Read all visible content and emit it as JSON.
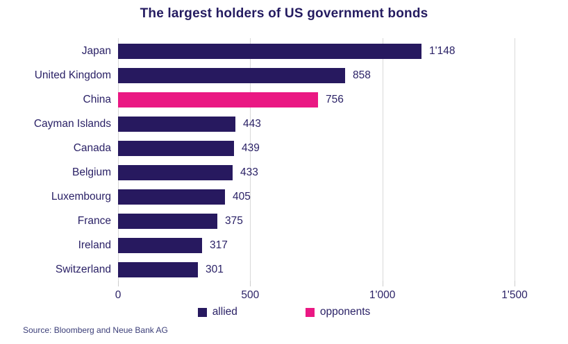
{
  "page": {
    "title": "The largest holders of US government bonds",
    "source": "Source: Bloomberg and Neue Bank AG"
  },
  "legend": {
    "allied_label": "allied",
    "opponents_label": "opponents"
  },
  "colors": {
    "allied": "#27195f",
    "opponents": "#ea1883",
    "grid": "#d9d9d9",
    "text": "#2a2166"
  },
  "chart_data": {
    "type": "bar",
    "orientation": "horizontal",
    "title": "The largest holders of US government bonds",
    "categories": [
      "Japan",
      "United Kingdom",
      "China",
      "Cayman Islands",
      "Canada",
      "Belgium",
      "Luxembourg",
      "France",
      "Ireland",
      "Switzerland"
    ],
    "values": [
      1148,
      858,
      756,
      443,
      439,
      433,
      405,
      375,
      317,
      301
    ],
    "value_labels": [
      "1'148",
      "858",
      "756",
      "443",
      "439",
      "433",
      "405",
      "375",
      "317",
      "301"
    ],
    "groups": [
      "allied",
      "allied",
      "opponents",
      "allied",
      "allied",
      "allied",
      "allied",
      "allied",
      "allied",
      "allied"
    ],
    "xlim": [
      0,
      1500
    ],
    "xticks": [
      0,
      500,
      1000,
      1500
    ],
    "xtick_labels": [
      "0",
      "500",
      "1'000",
      "1'500"
    ],
    "legend_entries": [
      "allied",
      "opponents"
    ],
    "legend_position": "bottom",
    "grid": "vertical"
  }
}
